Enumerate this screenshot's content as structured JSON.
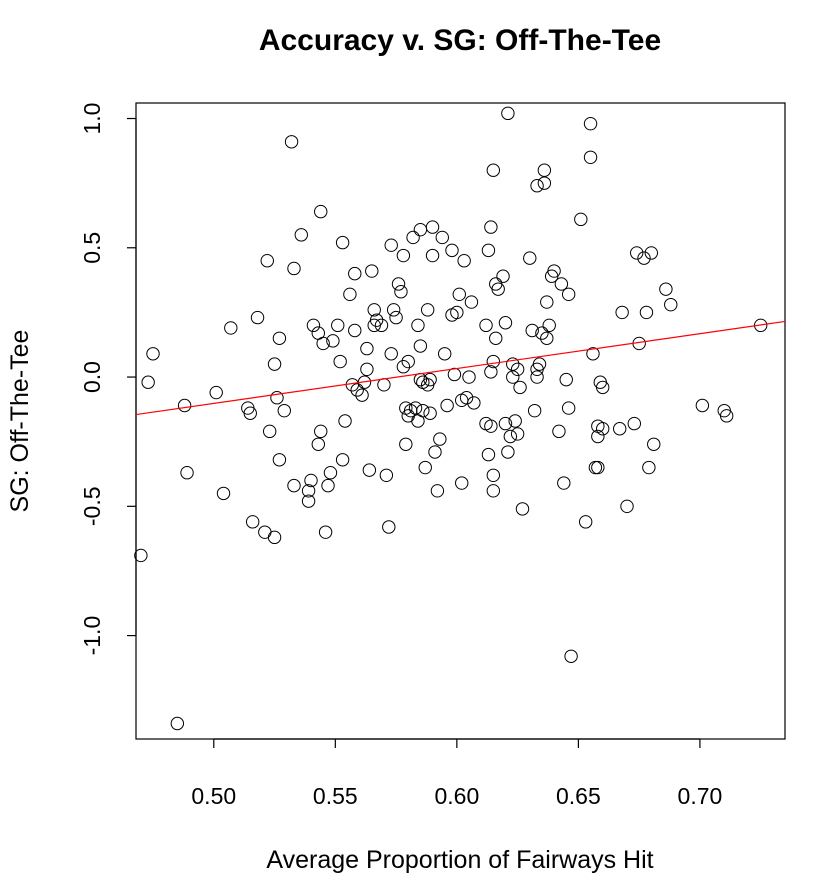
{
  "chart_data": {
    "type": "scatter",
    "title": "Accuracy v. SG: Off-The-Tee",
    "xlabel": "Average Proportion of Fairways Hit",
    "ylabel": "SG: Off-The-Tee",
    "xlim": [
      0.468,
      0.735
    ],
    "ylim": [
      -1.4,
      1.06
    ],
    "x_ticks": [
      0.5,
      0.55,
      0.6,
      0.65,
      0.7
    ],
    "x_tick_labels": [
      "0.50",
      "0.55",
      "0.60",
      "0.65",
      "0.70"
    ],
    "y_ticks": [
      -1.0,
      -0.5,
      0.0,
      0.5,
      1.0
    ],
    "y_tick_labels": [
      "-1.0",
      "-0.5",
      "0.0",
      "0.5",
      "1.0"
    ],
    "grid": false,
    "colors": {
      "points": "#000000",
      "trend_line": "#ff0000",
      "frame": "#000000"
    },
    "points": [
      [
        0.47,
        -0.69
      ],
      [
        0.473,
        -0.02
      ],
      [
        0.475,
        0.09
      ],
      [
        0.485,
        -1.34
      ],
      [
        0.488,
        -0.11
      ],
      [
        0.489,
        -0.37
      ],
      [
        0.501,
        -0.06
      ],
      [
        0.504,
        -0.45
      ],
      [
        0.507,
        0.19
      ],
      [
        0.514,
        -0.12
      ],
      [
        0.515,
        -0.14
      ],
      [
        0.516,
        -0.56
      ],
      [
        0.518,
        0.23
      ],
      [
        0.521,
        -0.6
      ],
      [
        0.522,
        0.45
      ],
      [
        0.523,
        -0.21
      ],
      [
        0.525,
        -0.62
      ],
      [
        0.525,
        0.05
      ],
      [
        0.526,
        -0.08
      ],
      [
        0.527,
        -0.32
      ],
      [
        0.527,
        0.15
      ],
      [
        0.529,
        -0.13
      ],
      [
        0.532,
        0.91
      ],
      [
        0.533,
        -0.42
      ],
      [
        0.533,
        0.42
      ],
      [
        0.536,
        0.55
      ],
      [
        0.539,
        -0.48
      ],
      [
        0.539,
        -0.44
      ],
      [
        0.54,
        -0.4
      ],
      [
        0.541,
        0.2
      ],
      [
        0.543,
        -0.26
      ],
      [
        0.543,
        0.17
      ],
      [
        0.544,
        0.64
      ],
      [
        0.544,
        -0.21
      ],
      [
        0.545,
        0.13
      ],
      [
        0.546,
        -0.6
      ],
      [
        0.547,
        -0.42
      ],
      [
        0.548,
        -0.37
      ],
      [
        0.549,
        0.14
      ],
      [
        0.551,
        0.2
      ],
      [
        0.552,
        0.06
      ],
      [
        0.553,
        -0.32
      ],
      [
        0.553,
        0.52
      ],
      [
        0.554,
        -0.17
      ],
      [
        0.556,
        0.32
      ],
      [
        0.557,
        -0.03
      ],
      [
        0.558,
        0.4
      ],
      [
        0.558,
        0.18
      ],
      [
        0.559,
        -0.05
      ],
      [
        0.561,
        -0.07
      ],
      [
        0.562,
        -0.02
      ],
      [
        0.563,
        0.11
      ],
      [
        0.563,
        0.03
      ],
      [
        0.564,
        -0.36
      ],
      [
        0.565,
        0.41
      ],
      [
        0.566,
        0.26
      ],
      [
        0.566,
        0.2
      ],
      [
        0.567,
        0.22
      ],
      [
        0.569,
        0.2
      ],
      [
        0.57,
        -0.03
      ],
      [
        0.571,
        -0.38
      ],
      [
        0.572,
        -0.58
      ],
      [
        0.573,
        0.51
      ],
      [
        0.573,
        0.09
      ],
      [
        0.574,
        0.26
      ],
      [
        0.575,
        0.23
      ],
      [
        0.576,
        0.36
      ],
      [
        0.577,
        0.33
      ],
      [
        0.578,
        0.04
      ],
      [
        0.578,
        0.47
      ],
      [
        0.579,
        -0.12
      ],
      [
        0.579,
        -0.26
      ],
      [
        0.58,
        0.06
      ],
      [
        0.58,
        -0.15
      ],
      [
        0.581,
        -0.13
      ],
      [
        0.582,
        0.54
      ],
      [
        0.583,
        -0.12
      ],
      [
        0.584,
        -0.17
      ],
      [
        0.584,
        0.2
      ],
      [
        0.585,
        0.57
      ],
      [
        0.585,
        -0.01
      ],
      [
        0.585,
        0.12
      ],
      [
        0.586,
        -0.13
      ],
      [
        0.586,
        -0.02
      ],
      [
        0.587,
        -0.35
      ],
      [
        0.588,
        0.26
      ],
      [
        0.588,
        -0.03
      ],
      [
        0.589,
        -0.01
      ],
      [
        0.589,
        -0.14
      ],
      [
        0.59,
        0.58
      ],
      [
        0.59,
        0.47
      ],
      [
        0.591,
        -0.29
      ],
      [
        0.592,
        -0.44
      ],
      [
        0.593,
        -0.24
      ],
      [
        0.594,
        0.54
      ],
      [
        0.595,
        0.09
      ],
      [
        0.596,
        -0.11
      ],
      [
        0.598,
        0.49
      ],
      [
        0.598,
        0.24
      ],
      [
        0.599,
        0.01
      ],
      [
        0.6,
        0.25
      ],
      [
        0.601,
        0.32
      ],
      [
        0.602,
        -0.41
      ],
      [
        0.602,
        -0.09
      ],
      [
        0.603,
        0.45
      ],
      [
        0.604,
        -0.08
      ],
      [
        0.605,
        0.0
      ],
      [
        0.606,
        0.29
      ],
      [
        0.607,
        -0.1
      ],
      [
        0.612,
        0.2
      ],
      [
        0.612,
        -0.18
      ],
      [
        0.613,
        0.49
      ],
      [
        0.613,
        -0.3
      ],
      [
        0.614,
        0.58
      ],
      [
        0.614,
        0.02
      ],
      [
        0.614,
        -0.19
      ],
      [
        0.615,
        0.8
      ],
      [
        0.615,
        0.06
      ],
      [
        0.615,
        -0.38
      ],
      [
        0.615,
        -0.44
      ],
      [
        0.616,
        0.36
      ],
      [
        0.616,
        0.15
      ],
      [
        0.617,
        0.34
      ],
      [
        0.619,
        0.39
      ],
      [
        0.62,
        0.21
      ],
      [
        0.62,
        -0.18
      ],
      [
        0.621,
        1.02
      ],
      [
        0.621,
        -0.29
      ],
      [
        0.622,
        -0.23
      ],
      [
        0.623,
        0.05
      ],
      [
        0.623,
        0.0
      ],
      [
        0.624,
        -0.17
      ],
      [
        0.625,
        -0.22
      ],
      [
        0.625,
        0.03
      ],
      [
        0.626,
        -0.04
      ],
      [
        0.627,
        -0.51
      ],
      [
        0.63,
        0.46
      ],
      [
        0.631,
        0.18
      ],
      [
        0.632,
        -0.13
      ],
      [
        0.633,
        0.03
      ],
      [
        0.633,
        0.74
      ],
      [
        0.633,
        0.0
      ],
      [
        0.634,
        0.05
      ],
      [
        0.635,
        0.17
      ],
      [
        0.636,
        0.8
      ],
      [
        0.636,
        0.75
      ],
      [
        0.637,
        0.29
      ],
      [
        0.637,
        0.15
      ],
      [
        0.638,
        0.2
      ],
      [
        0.639,
        0.39
      ],
      [
        0.64,
        0.41
      ],
      [
        0.642,
        -0.21
      ],
      [
        0.643,
        0.36
      ],
      [
        0.644,
        -0.41
      ],
      [
        0.645,
        -0.01
      ],
      [
        0.646,
        0.32
      ],
      [
        0.646,
        -0.12
      ],
      [
        0.647,
        -1.08
      ],
      [
        0.651,
        0.61
      ],
      [
        0.653,
        -0.56
      ],
      [
        0.655,
        0.98
      ],
      [
        0.655,
        0.85
      ],
      [
        0.656,
        0.09
      ],
      [
        0.657,
        -0.35
      ],
      [
        0.658,
        -0.35
      ],
      [
        0.658,
        -0.23
      ],
      [
        0.658,
        -0.19
      ],
      [
        0.659,
        -0.02
      ],
      [
        0.66,
        -0.04
      ],
      [
        0.66,
        -0.2
      ],
      [
        0.667,
        -0.2
      ],
      [
        0.668,
        0.25
      ],
      [
        0.67,
        -0.5
      ],
      [
        0.673,
        -0.18
      ],
      [
        0.674,
        0.48
      ],
      [
        0.675,
        0.13
      ],
      [
        0.677,
        0.46
      ],
      [
        0.678,
        0.25
      ],
      [
        0.679,
        -0.35
      ],
      [
        0.68,
        0.48
      ],
      [
        0.681,
        -0.26
      ],
      [
        0.686,
        0.34
      ],
      [
        0.688,
        0.28
      ],
      [
        0.701,
        -0.11
      ],
      [
        0.71,
        -0.13
      ],
      [
        0.711,
        -0.15
      ],
      [
        0.725,
        0.2
      ]
    ],
    "trend_line": {
      "x": [
        0.468,
        0.735
      ],
      "y": [
        -0.145,
        0.215
      ]
    }
  }
}
